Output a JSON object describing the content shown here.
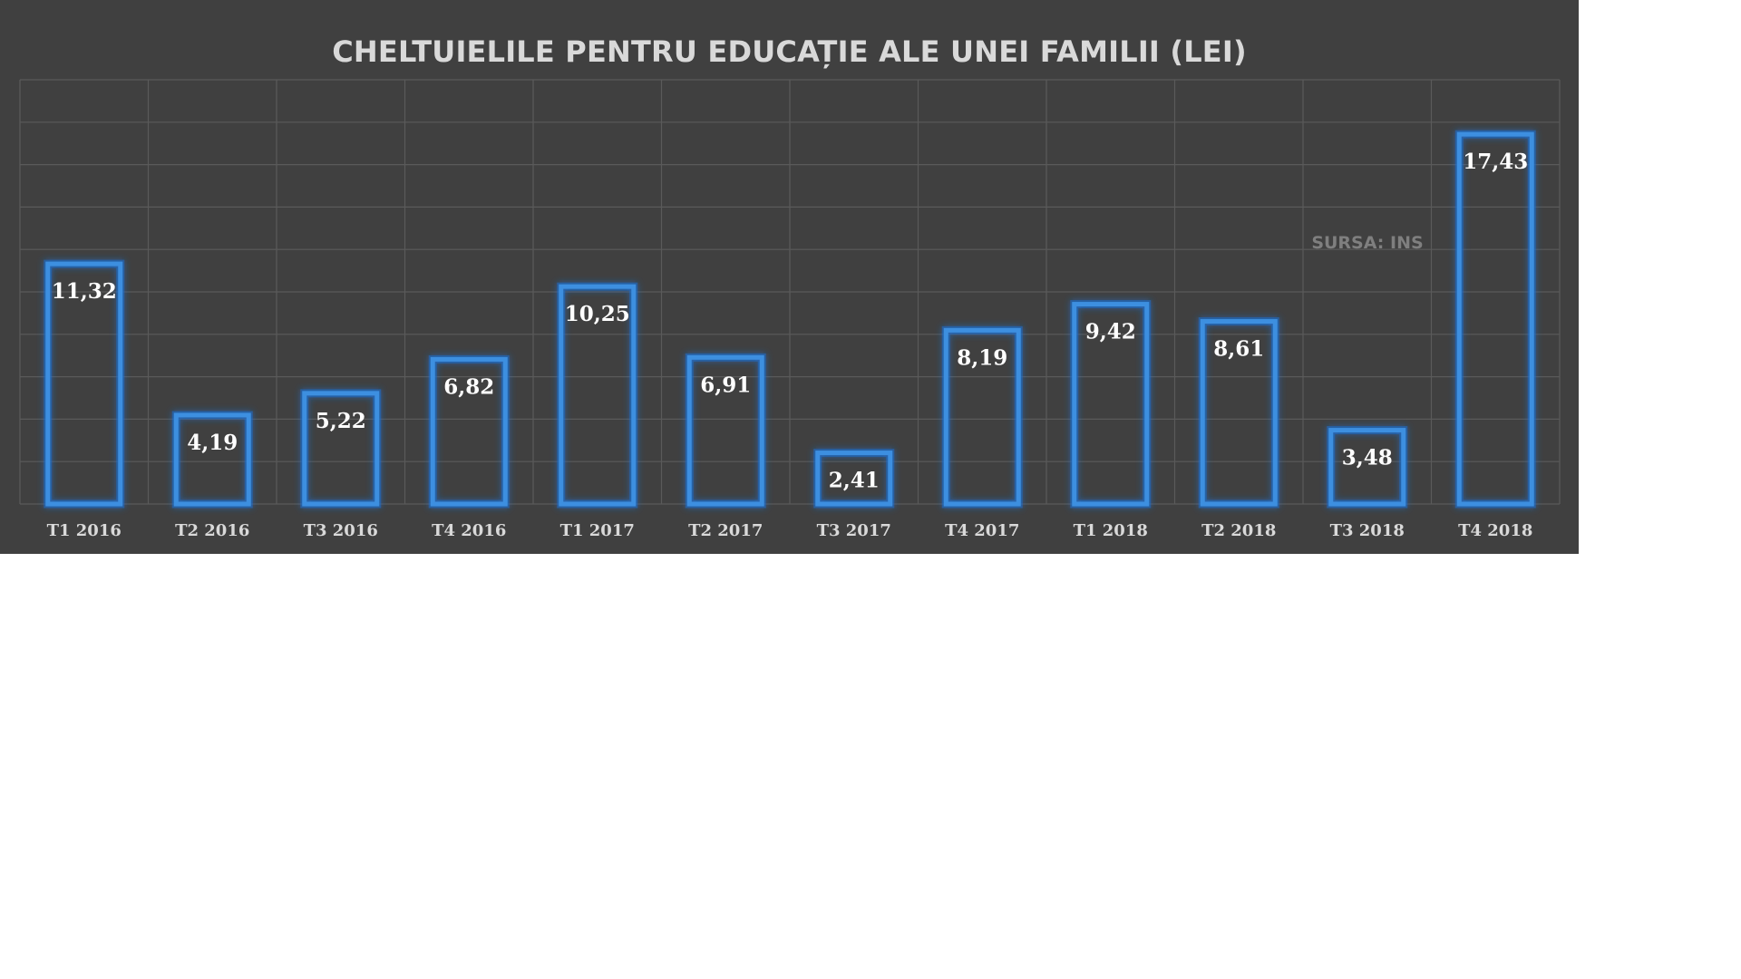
{
  "chart_data": {
    "type": "bar",
    "title": "CHELTUIELILE PENTRU EDUCAȚIE ALE UNEI FAMILII (LEI)",
    "categories": [
      "T1 2016",
      "T2 2016",
      "T3 2016",
      "T4 2016",
      "T1 2017",
      "T2 2017",
      "T3 2017",
      "T4 2017",
      "T1 2018",
      "T2 2018",
      "T3 2018",
      "T4 2018"
    ],
    "values": [
      11.32,
      4.19,
      5.22,
      6.82,
      10.25,
      6.91,
      2.41,
      8.19,
      9.42,
      8.61,
      3.48,
      17.43
    ],
    "value_labels": [
      "11,32",
      "4,19",
      "5,22",
      "6,82",
      "10,25",
      "6,91",
      "2,41",
      "8,19",
      "9,42",
      "8,61",
      "3,48",
      "17,43"
    ],
    "xlabel": "",
    "ylabel": "",
    "ylim": [
      0,
      20
    ],
    "grid": true,
    "source_note": "SURSA: INS",
    "colors": {
      "background": "#404040",
      "bar_outline": "#3d8fe0",
      "bar_glow": "#1e6fd0",
      "grid": "#5a5a5a",
      "text": "#d9d9d9"
    }
  }
}
